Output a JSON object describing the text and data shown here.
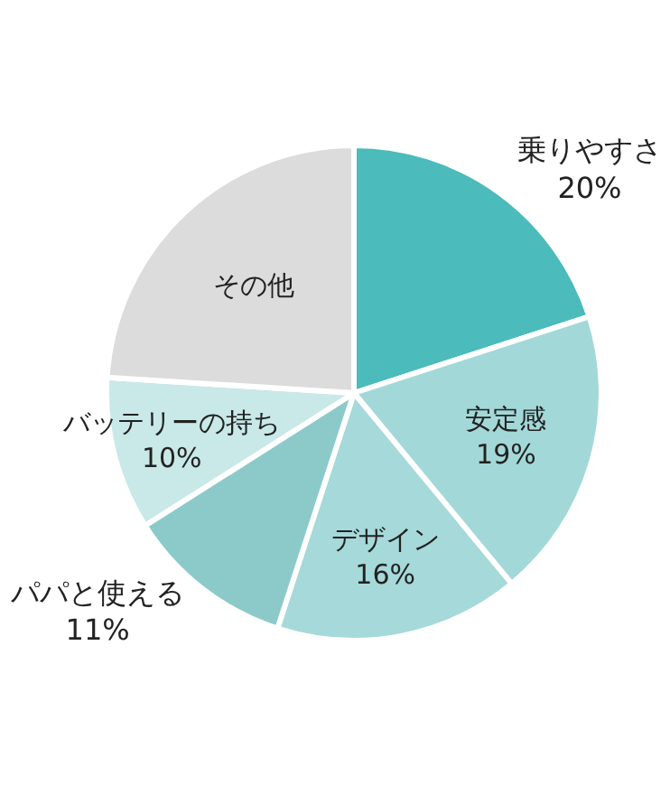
{
  "chart_data": {
    "type": "pie",
    "categories": [
      "乗りやすさ",
      "安定感",
      "デザイン",
      "パパと使える",
      "バッテリーの持ち",
      "その他"
    ],
    "values": [
      20,
      19,
      16,
      11,
      10,
      24
    ],
    "value_labels": [
      "20%",
      "19%",
      "16%",
      "11%",
      "10%",
      null
    ],
    "colors": [
      "#4bbbbb",
      "#a3d8d8",
      "#a6d9d9",
      "#8ccaca",
      "#c9e8e8",
      "#dcdcdc"
    ],
    "legend": false
  }
}
